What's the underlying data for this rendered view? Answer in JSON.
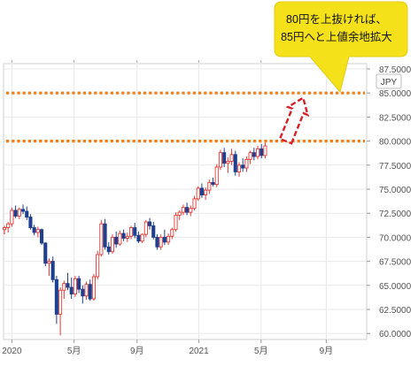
{
  "chart_data": {
    "type": "candlestick",
    "currency": "JPY",
    "y_ticks": [
      "87.5000",
      "85.0000",
      "82.5000",
      "80.0000",
      "77.5000",
      "75.0000",
      "72.5000",
      "70.0000",
      "67.5000",
      "65.0000",
      "62.5000",
      "60.0000"
    ],
    "ylim": [
      58.9,
      87.6
    ],
    "x_ticks": [
      {
        "label": "2020",
        "t": 2.0
      },
      {
        "label": "5月",
        "t": 18.7
      },
      {
        "label": "9月",
        "t": 35.6
      },
      {
        "label": "2021",
        "t": 52.2
      },
      {
        "label": "5月",
        "t": 68.9
      },
      {
        "label": "9月",
        "t": 86.4
      }
    ],
    "xlim": [
      0,
      97
    ],
    "horizontal_lines": [
      85.0,
      80.0
    ],
    "projection": {
      "from": {
        "t": 75.5,
        "y": 80.0
      },
      "to": {
        "t": 80.2,
        "y": 84.5
      }
    },
    "annotation": {
      "line1": "80円を上抜ければ、",
      "line2": "85円へと上値余地拡大"
    },
    "colors": {
      "up": "#e53935",
      "down": "#1f3f8f",
      "level": "#f07f1a",
      "callout": "#f5e11a",
      "arrow": "#d61f26",
      "axis_text": "#555555",
      "grid": "#e9e9e9"
    },
    "candles": [
      [
        0,
        70.8,
        71.2,
        70.3,
        71.0
      ],
      [
        1,
        71.0,
        71.6,
        70.5,
        71.4
      ],
      [
        2,
        71.4,
        73.1,
        71.1,
        72.8
      ],
      [
        3,
        72.8,
        73.3,
        72.0,
        72.2
      ],
      [
        4,
        72.2,
        73.1,
        71.9,
        72.9
      ],
      [
        5,
        72.9,
        73.4,
        72.4,
        72.7
      ],
      [
        6,
        72.7,
        73.2,
        71.8,
        72.1
      ],
      [
        7,
        72.1,
        72.4,
        70.8,
        71.0
      ],
      [
        8,
        71.0,
        71.3,
        70.2,
        70.5
      ],
      [
        9,
        70.5,
        71.1,
        70.0,
        70.8
      ],
      [
        10,
        70.8,
        70.9,
        69.2,
        69.4
      ],
      [
        11,
        69.4,
        69.5,
        67.0,
        67.3
      ],
      [
        12,
        67.3,
        67.8,
        66.0,
        67.5
      ],
      [
        13,
        67.5,
        68.0,
        65.3,
        65.6
      ],
      [
        14,
        65.6,
        66.0,
        61.0,
        62.0
      ],
      [
        15,
        62.0,
        64.8,
        59.8,
        64.5
      ],
      [
        16,
        64.5,
        65.5,
        63.6,
        65.2
      ],
      [
        17,
        65.2,
        66.3,
        64.5,
        64.8
      ],
      [
        18,
        64.8,
        65.8,
        63.6,
        64.1
      ],
      [
        19,
        64.1,
        66.0,
        63.8,
        65.7
      ],
      [
        20,
        65.7,
        66.0,
        64.2,
        64.6
      ],
      [
        21,
        64.6,
        65.0,
        63.1,
        63.9
      ],
      [
        22,
        63.9,
        65.4,
        63.5,
        65.1
      ],
      [
        23,
        65.1,
        65.6,
        63.4,
        63.6
      ],
      [
        24,
        63.6,
        66.2,
        63.4,
        65.9
      ],
      [
        25,
        65.9,
        68.6,
        65.6,
        68.2
      ],
      [
        26,
        68.2,
        71.8,
        68.0,
        71.4
      ],
      [
        27,
        71.4,
        71.9,
        68.7,
        69.0
      ],
      [
        28,
        69.0,
        69.5,
        68.2,
        68.5
      ],
      [
        29,
        68.5,
        70.3,
        68.3,
        70.0
      ],
      [
        30,
        70.0,
        70.6,
        68.9,
        69.3
      ],
      [
        31,
        69.3,
        70.7,
        69.1,
        70.4
      ],
      [
        32,
        70.4,
        70.8,
        69.6,
        69.9
      ],
      [
        33,
        69.9,
        70.5,
        69.5,
        70.1
      ],
      [
        34,
        70.1,
        71.2,
        69.8,
        71.0
      ],
      [
        35,
        71.0,
        71.5,
        69.9,
        70.2
      ],
      [
        36,
        70.2,
        70.6,
        69.4,
        69.6
      ],
      [
        37,
        69.6,
        70.4,
        69.4,
        70.3
      ],
      [
        38,
        70.3,
        71.8,
        70.0,
        71.6
      ],
      [
        39,
        71.6,
        72.0,
        70.8,
        71.2
      ],
      [
        40,
        71.2,
        71.6,
        69.8,
        70.0
      ],
      [
        41,
        70.0,
        70.3,
        68.7,
        69.0
      ],
      [
        42,
        69.0,
        70.3,
        68.7,
        70.0
      ],
      [
        43,
        70.0,
        70.8,
        69.2,
        69.5
      ],
      [
        44,
        69.5,
        70.4,
        69.2,
        70.1
      ],
      [
        45,
        70.1,
        71.0,
        69.8,
        70.8
      ],
      [
        46,
        70.8,
        72.6,
        70.6,
        72.3
      ],
      [
        47,
        72.3,
        72.8,
        71.8,
        72.6
      ],
      [
        48,
        72.6,
        73.4,
        72.3,
        73.1
      ],
      [
        49,
        73.1,
        73.6,
        72.3,
        72.6
      ],
      [
        50,
        72.6,
        73.3,
        72.2,
        73.0
      ],
      [
        51,
        73.0,
        74.3,
        72.8,
        74.0
      ],
      [
        52,
        74.0,
        75.3,
        73.8,
        75.1
      ],
      [
        53,
        75.1,
        75.6,
        74.1,
        74.4
      ],
      [
        54,
        74.4,
        75.2,
        73.9,
        74.9
      ],
      [
        55,
        74.9,
        76.0,
        74.5,
        75.7
      ],
      [
        56,
        75.7,
        76.2,
        75.3,
        75.5
      ],
      [
        57,
        75.5,
        77.6,
        75.2,
        77.3
      ],
      [
        58,
        77.3,
        79.1,
        77.0,
        78.8
      ],
      [
        59,
        78.8,
        79.3,
        77.3,
        77.7
      ],
      [
        60,
        77.7,
        78.3,
        76.7,
        77.9
      ],
      [
        61,
        77.9,
        79.2,
        77.5,
        78.6
      ],
      [
        62,
        78.6,
        79.0,
        76.4,
        76.8
      ],
      [
        63,
        76.8,
        77.8,
        76.3,
        77.5
      ],
      [
        64,
        77.5,
        78.2,
        76.8,
        77.2
      ],
      [
        65,
        77.2,
        78.4,
        76.8,
        78.1
      ],
      [
        66,
        78.1,
        79.0,
        77.6,
        78.8
      ],
      [
        67,
        78.8,
        79.3,
        78.0,
        78.4
      ],
      [
        68,
        78.4,
        79.5,
        78.1,
        79.2
      ],
      [
        69,
        79.2,
        79.7,
        78.2,
        78.5
      ],
      [
        70,
        78.5,
        79.9,
        78.2,
        79.5
      ]
    ]
  }
}
